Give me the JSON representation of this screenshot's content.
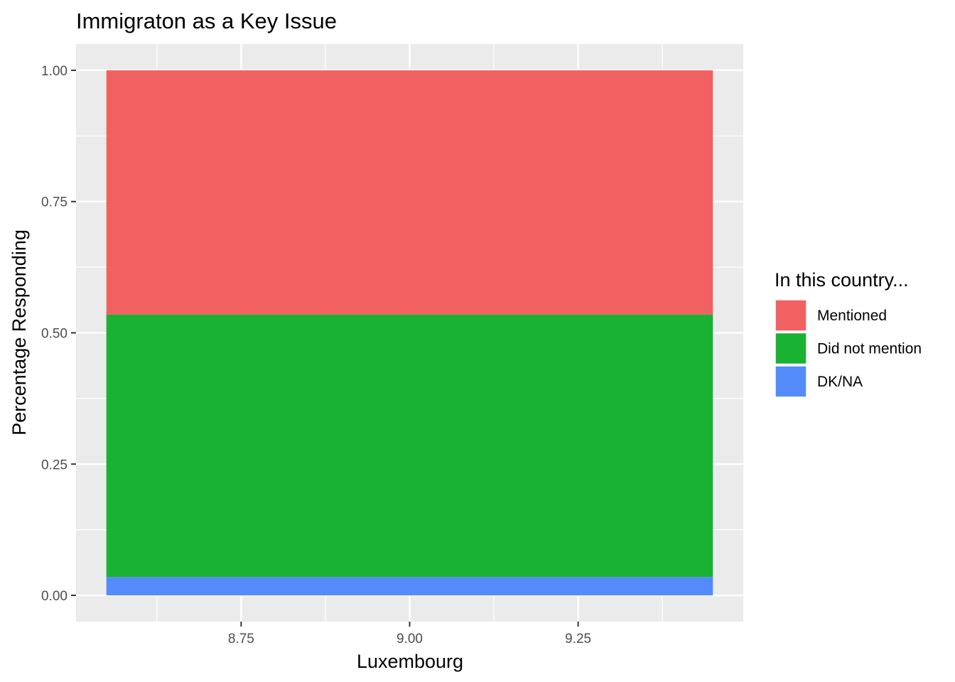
{
  "chart_data": {
    "type": "bar",
    "stacked": true,
    "title": "Immigraton as a Key Issue",
    "xlabel": "Luxembourg",
    "ylabel": "Percentage Responding",
    "x_center": 9.0,
    "bar_width": 0.9,
    "xlim": [
      8.505,
      9.495
    ],
    "ylim": [
      -0.05,
      1.05
    ],
    "x_ticks": [
      8.75,
      9.0,
      9.25
    ],
    "x_tick_labels": [
      "8.75",
      "9.00",
      "9.25"
    ],
    "y_ticks": [
      0,
      0.25,
      0.5,
      0.75,
      1.0
    ],
    "y_tick_labels": [
      "0.00",
      "0.25",
      "0.50",
      "0.75",
      "1.00"
    ],
    "grid": true,
    "legend_position": "right",
    "legend_title": "In this country...",
    "series": [
      {
        "name": "Mentioned",
        "value": 0.465,
        "color": "#F26161"
      },
      {
        "name": "Did not mention",
        "value": 0.5,
        "color": "#1AB232"
      },
      {
        "name": "DK/NA",
        "value": 0.035,
        "color": "#548BFA"
      }
    ]
  }
}
